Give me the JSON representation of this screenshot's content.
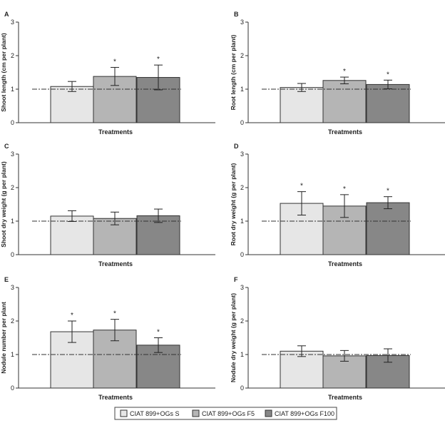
{
  "colors": {
    "series": [
      "#e6e6e6",
      "#b5b5b5",
      "#878787"
    ],
    "outline": "#333333",
    "reference_line": "#333333"
  },
  "legend": {
    "entries": [
      "CIAT 899+OGs S",
      "CIAT 899+OGs F5",
      "CIAT 899+OGs F100"
    ]
  },
  "chart_data": [
    {
      "panel": "A",
      "type": "bar",
      "xlabel": "Treatments",
      "ylabel": "Shoot length (cm per plant)",
      "ylim": [
        0,
        3
      ],
      "yticks": [
        0,
        1,
        2,
        3
      ],
      "reference_value": 1,
      "series": [
        {
          "name": "CIAT 899+OGs S",
          "value": 1.08,
          "error": 0.15,
          "significant": false
        },
        {
          "name": "CIAT 899+OGs F5",
          "value": 1.38,
          "error": 0.27,
          "significant": true
        },
        {
          "name": "CIAT 899+OGs F100",
          "value": 1.35,
          "error": 0.37,
          "significant": true
        }
      ]
    },
    {
      "panel": "B",
      "type": "bar",
      "xlabel": "Treatments",
      "ylabel": "Root length (cm per plant)",
      "ylim": [
        0,
        3
      ],
      "yticks": [
        0,
        1,
        2,
        3
      ],
      "reference_value": 1,
      "series": [
        {
          "name": "CIAT 899+OGs S",
          "value": 1.05,
          "error": 0.12,
          "significant": false
        },
        {
          "name": "CIAT 899+OGs F5",
          "value": 1.26,
          "error": 0.1,
          "significant": true
        },
        {
          "name": "CIAT 899+OGs F100",
          "value": 1.14,
          "error": 0.13,
          "significant": true
        }
      ]
    },
    {
      "panel": "C",
      "type": "bar",
      "xlabel": "Treatments",
      "ylabel": "Shoot dry weight (g per plant)",
      "ylim": [
        0,
        3
      ],
      "yticks": [
        0,
        1,
        2,
        3
      ],
      "reference_value": 1,
      "series": [
        {
          "name": "CIAT 899+OGs S",
          "value": 1.15,
          "error": 0.16,
          "significant": false
        },
        {
          "name": "CIAT 899+OGs F5",
          "value": 1.08,
          "error": 0.19,
          "significant": false
        },
        {
          "name": "CIAT 899+OGs F100",
          "value": 1.16,
          "error": 0.2,
          "significant": false
        }
      ]
    },
    {
      "panel": "D",
      "type": "bar",
      "xlabel": "Treatments",
      "ylabel": "Root dry weight (g per plant)",
      "ylim": [
        0,
        3
      ],
      "yticks": [
        0,
        1,
        2,
        3
      ],
      "reference_value": 1,
      "series": [
        {
          "name": "CIAT 899+OGs S",
          "value": 1.53,
          "error": 0.35,
          "significant": true
        },
        {
          "name": "CIAT 899+OGs F5",
          "value": 1.45,
          "error": 0.34,
          "significant": true
        },
        {
          "name": "CIAT 899+OGs F100",
          "value": 1.55,
          "error": 0.18,
          "significant": true
        }
      ]
    },
    {
      "panel": "E",
      "type": "bar",
      "xlabel": "Treatments",
      "ylabel": "Nodule number per plant",
      "ylim": [
        0,
        3
      ],
      "yticks": [
        0,
        1,
        2,
        3
      ],
      "reference_value": 1,
      "series": [
        {
          "name": "CIAT 899+OGs S",
          "value": 1.68,
          "error": 0.32,
          "significant": true
        },
        {
          "name": "CIAT 899+OGs F5",
          "value": 1.73,
          "error": 0.32,
          "significant": true
        },
        {
          "name": "CIAT 899+OGs F100",
          "value": 1.28,
          "error": 0.22,
          "significant": true
        }
      ]
    },
    {
      "panel": "F",
      "type": "bar",
      "xlabel": "Treatments",
      "ylabel": "Nodule dry weight (g per plant)",
      "ylim": [
        0,
        3
      ],
      "yticks": [
        0,
        1,
        2,
        3
      ],
      "reference_value": 1,
      "series": [
        {
          "name": "CIAT 899+OGs S",
          "value": 1.1,
          "error": 0.16,
          "significant": false
        },
        {
          "name": "CIAT 899+OGs F5",
          "value": 0.96,
          "error": 0.16,
          "significant": false
        },
        {
          "name": "CIAT 899+OGs F100",
          "value": 0.97,
          "error": 0.2,
          "significant": false
        }
      ]
    }
  ]
}
